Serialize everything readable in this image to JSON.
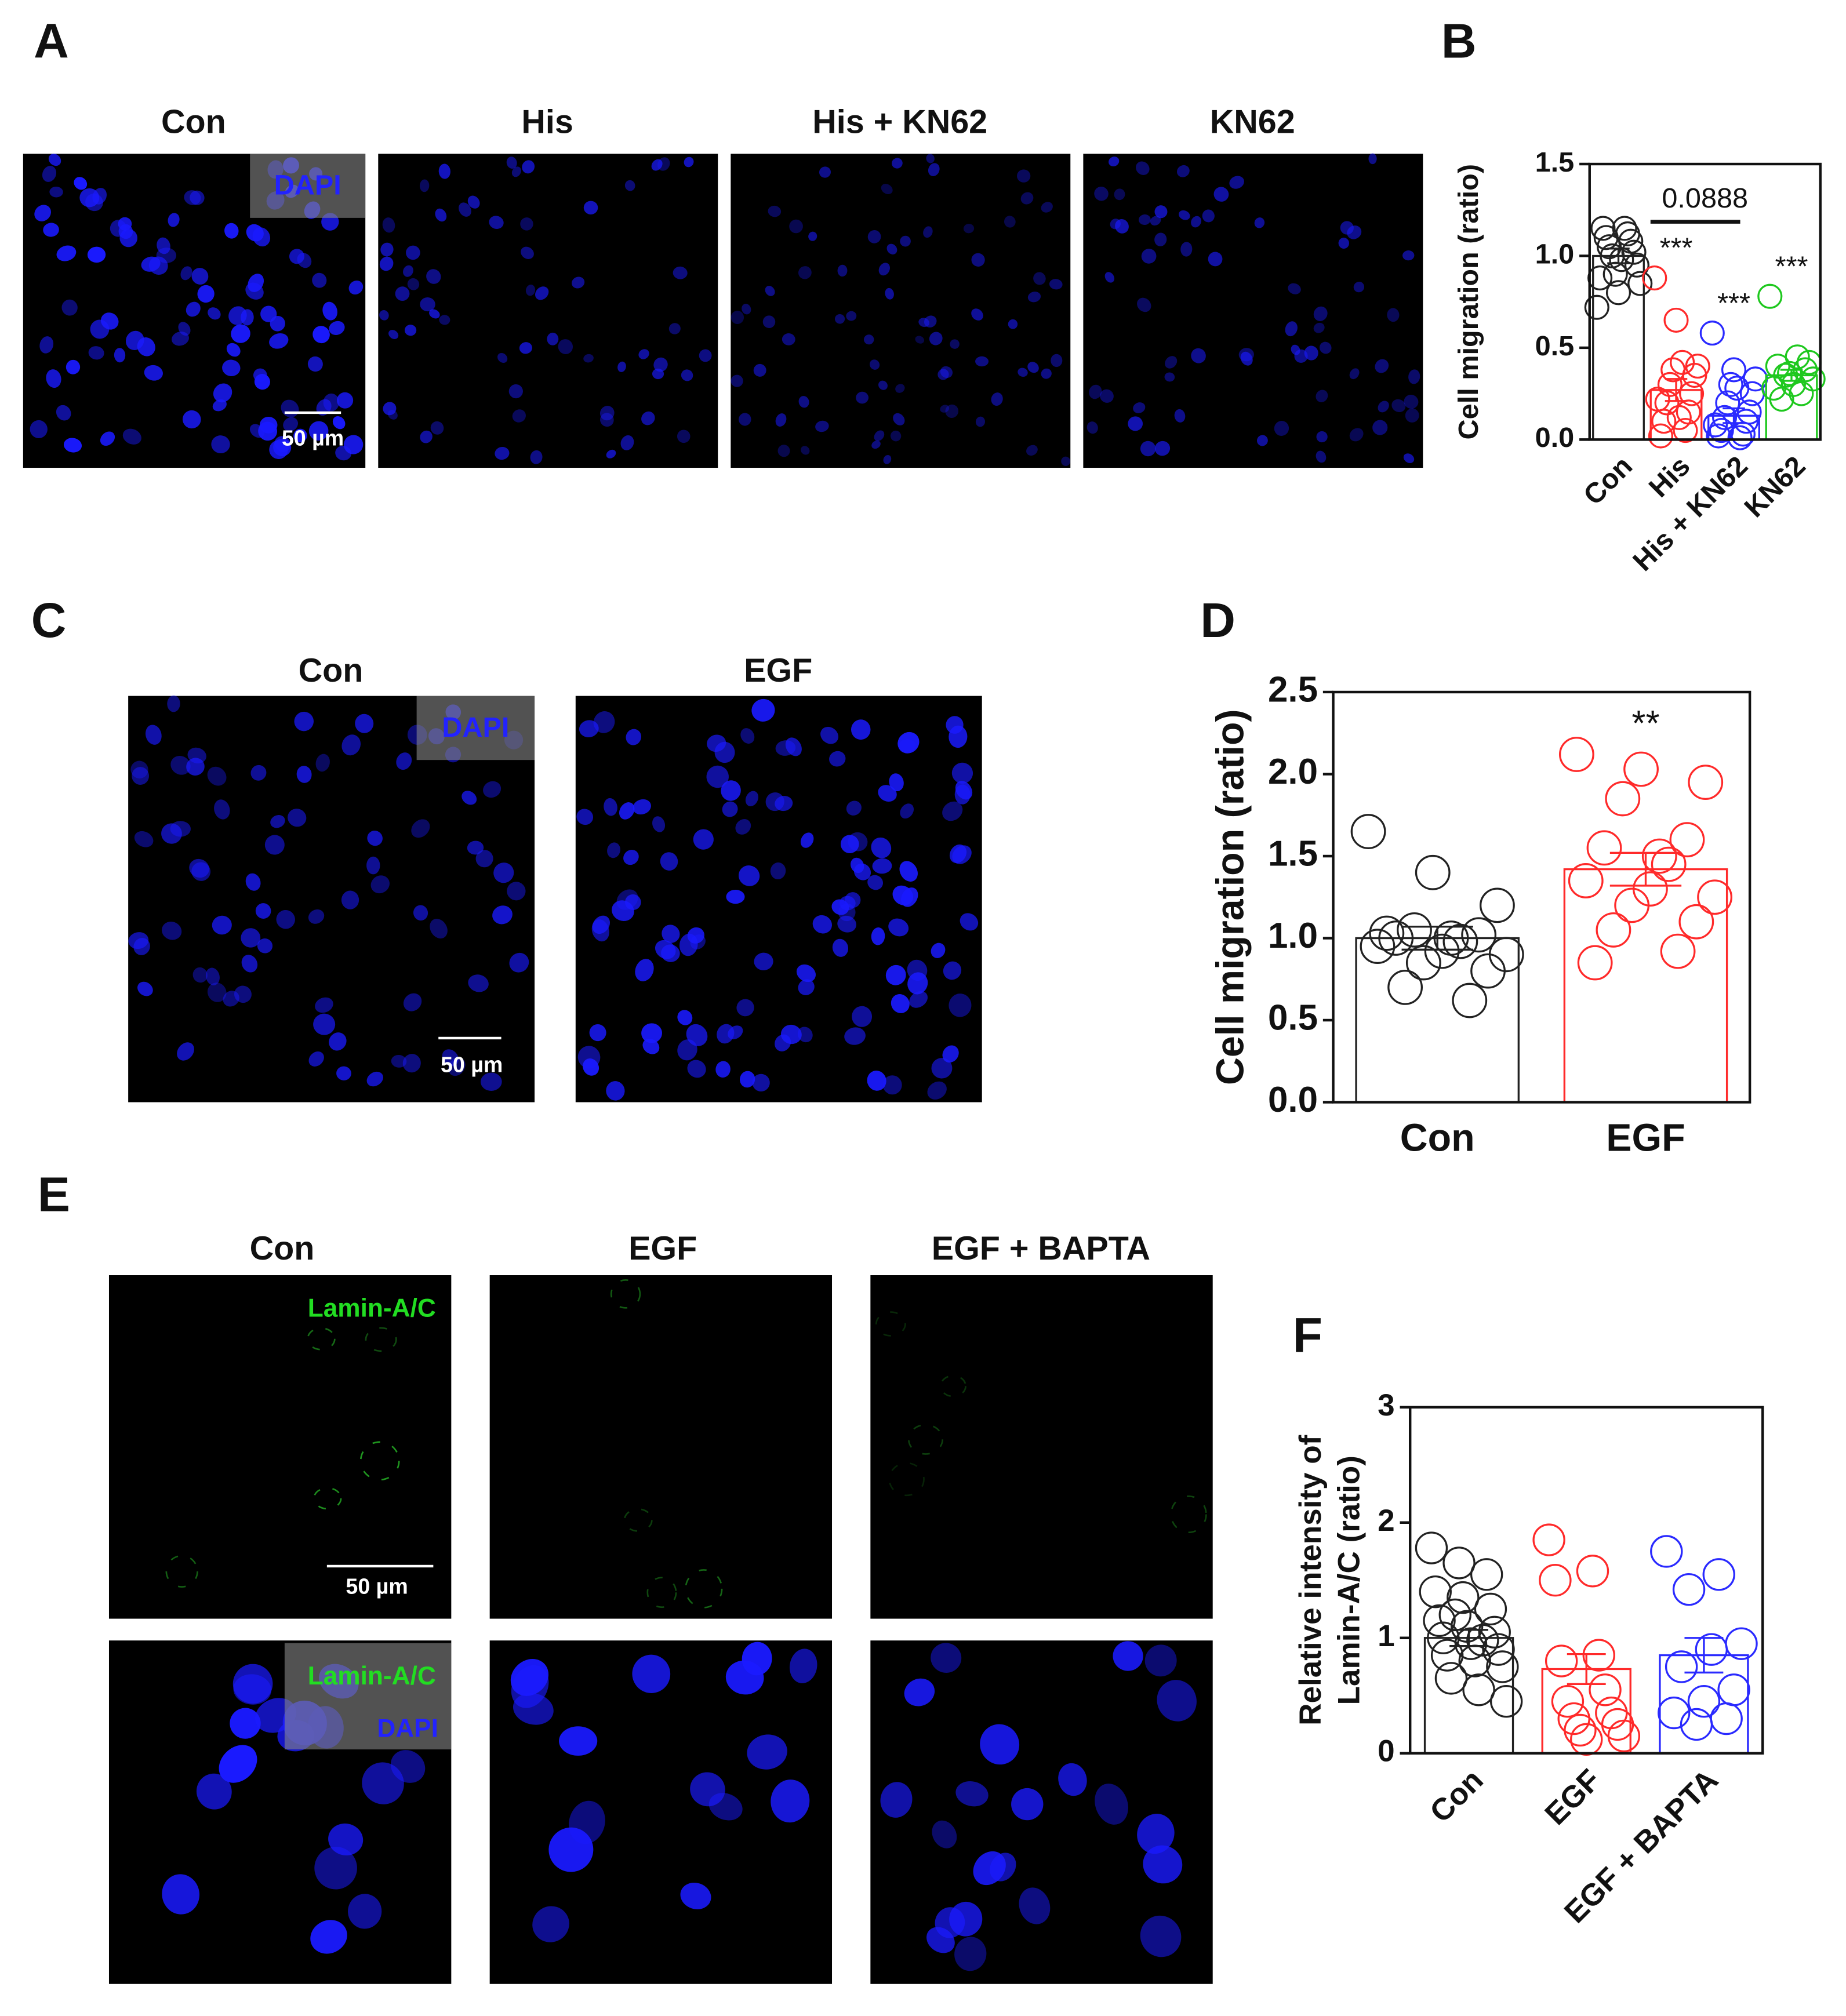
{
  "figure": {
    "labels": [
      "A",
      "B",
      "C",
      "D",
      "E",
      "F"
    ],
    "a_titles": [
      "Con",
      "His",
      "His + KN62",
      "KN62"
    ],
    "a_stain": "DAPI",
    "a_scale": "50 µm",
    "c_titles": [
      "Con",
      "EGF"
    ],
    "c_stain": "DAPI",
    "c_scale": "50 µm",
    "e_titles": [
      "Con",
      "EGF",
      "EGF + BAPTA"
    ],
    "e_stain_top": "Lamin-A/C",
    "e_stain_bottom": [
      "Lamin-A/C",
      "DAPI"
    ],
    "e_scale": "50 µm"
  },
  "chart_data": [
    {
      "type": "bar",
      "ylabel": [
        "Cell migration (ratio)"
      ],
      "categories": [
        "Con",
        "His",
        "His + KN62",
        "KN62"
      ],
      "colors": [
        "#222222",
        "#ff2a2a",
        "#2a2aff",
        "#1ec81e"
      ],
      "values": [
        1.0,
        0.27,
        0.13,
        0.35
      ],
      "errors": [
        0.04,
        0.06,
        0.04,
        0.03
      ],
      "points": [
        [
          0.72,
          0.8,
          0.85,
          0.9,
          0.95,
          1.0,
          1.02,
          1.05,
          1.08,
          1.1,
          1.12,
          1.15,
          1.15,
          0.88,
          0.98
        ],
        [
          0.88,
          0.65,
          0.4,
          0.38,
          0.35,
          0.3,
          0.25,
          0.2,
          0.15,
          0.1,
          0.05,
          0.02,
          0.42,
          0.22,
          0.12
        ],
        [
          0.58,
          0.38,
          0.33,
          0.3,
          0.25,
          0.2,
          0.15,
          0.12,
          0.1,
          0.05,
          0.03,
          0.02,
          0.01,
          0.08,
          0.28
        ],
        [
          0.78,
          0.45,
          0.4,
          0.38,
          0.35,
          0.33,
          0.3,
          0.28,
          0.25,
          0.22,
          0.42,
          0.36
        ]
      ],
      "significance": [
        null,
        "***",
        "***",
        "***"
      ],
      "bracket": {
        "label": "0.0888",
        "between": [
          "His",
          "His + KN62"
        ]
      },
      "ylim": [
        0,
        1.5
      ],
      "yticks": [
        {
          "value": 0,
          "label": "0.0"
        },
        {
          "value": 0.5,
          "label": "0.5"
        },
        {
          "value": 1,
          "label": "1.0"
        },
        {
          "value": 1.5,
          "label": "1.5"
        }
      ]
    },
    {
      "type": "bar",
      "ylabel": [
        "Cell migration (ratio)"
      ],
      "categories": [
        "Con",
        "EGF"
      ],
      "colors": [
        "#222222",
        "#ff2a2a"
      ],
      "values": [
        1.0,
        1.42
      ],
      "errors": [
        0.07,
        0.1
      ],
      "points": [
        [
          1.65,
          1.4,
          1.2,
          1.05,
          1.02,
          1.0,
          0.98,
          0.95,
          0.92,
          0.9,
          0.85,
          0.8,
          0.7,
          0.62,
          1.03,
          1.0
        ],
        [
          2.12,
          2.03,
          1.95,
          1.85,
          1.6,
          1.55,
          1.45,
          1.35,
          1.3,
          1.25,
          1.2,
          1.1,
          1.05,
          0.92,
          0.85,
          1.5
        ]
      ],
      "significance": [
        null,
        "**"
      ],
      "ylim": [
        0,
        2.5
      ],
      "yticks": [
        {
          "value": 0,
          "label": "0.0"
        },
        {
          "value": 0.5,
          "label": "0.5"
        },
        {
          "value": 1,
          "label": "1.0"
        },
        {
          "value": 1.5,
          "label": "1.5"
        },
        {
          "value": 2,
          "label": "2.0"
        },
        {
          "value": 2.5,
          "label": "2.5"
        }
      ]
    },
    {
      "type": "bar",
      "ylabel": [
        "Relative intensity of",
        "Lamin-A/C (ratio)"
      ],
      "categories": [
        "Con",
        "EGF",
        "EGF + BAPTA"
      ],
      "colors": [
        "#222222",
        "#ff2a2a",
        "#2a2aff"
      ],
      "values": [
        1.0,
        0.73,
        0.85
      ],
      "errors": [
        0.07,
        0.13,
        0.15
      ],
      "points": [
        [
          1.78,
          1.65,
          1.55,
          1.4,
          1.35,
          1.25,
          1.15,
          1.1,
          1.05,
          1.0,
          0.95,
          0.9,
          0.85,
          0.8,
          0.75,
          0.65,
          0.55,
          0.45,
          1.2,
          0.98
        ],
        [
          1.85,
          1.58,
          1.5,
          0.85,
          0.8,
          0.55,
          0.45,
          0.35,
          0.3,
          0.25,
          0.2,
          0.15,
          0.12
        ],
        [
          1.75,
          1.55,
          1.42,
          0.95,
          0.9,
          0.75,
          0.55,
          0.45,
          0.35,
          0.3,
          0.25
        ]
      ],
      "significance": [
        null,
        null,
        null
      ],
      "ylim": [
        0,
        3
      ],
      "yticks": [
        0,
        1,
        2,
        3
      ]
    }
  ]
}
